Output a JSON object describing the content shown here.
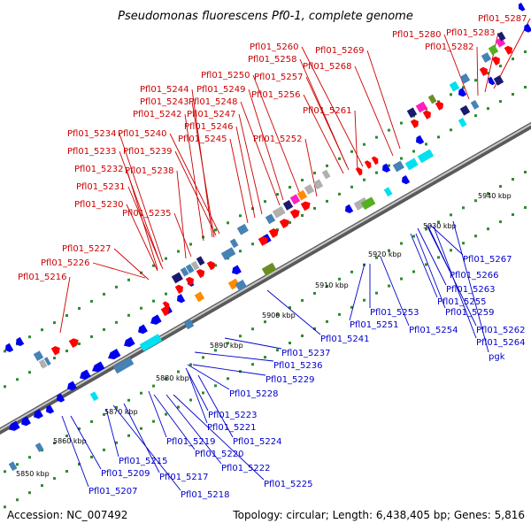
{
  "title": "Pseudomonas fluorescens Pf0-1, complete genome",
  "footer": {
    "accession": "Accession: NC_007492",
    "summary": "Topology: circular; Length: 6,438,405 bp; Genes: 5,816"
  },
  "colors": {
    "top_label": "#cc0000",
    "bottom_label": "#0000cc",
    "backbone": "#8a8a8a",
    "dots": "#2e8b2e",
    "forward_gene": "#ff0000",
    "reverse_gene": "#0000ee",
    "cyan_gene": "#00e0f0",
    "steelblue_gene": "#4682b4",
    "green_gene": "#55b020",
    "olive_gene": "#6b8e23",
    "orange_gene": "#ff8c00",
    "magenta_gene": "#ff20c0",
    "navy_gene": "#1a1a70",
    "gray_gene": "#b0b0b0"
  },
  "ticks": [
    {
      "label": "5850 kbp"
    },
    {
      "label": "5860 kbp"
    },
    {
      "label": "5870 kbp"
    },
    {
      "label": "5880 kbp"
    },
    {
      "label": "5890 kbp"
    },
    {
      "label": "5900 kbp"
    },
    {
      "label": "5910 kbp"
    },
    {
      "label": "5920 kbp"
    },
    {
      "label": "5930 kbp"
    },
    {
      "label": "5940 kbp"
    }
  ],
  "top_labels": [
    "Pfl01_5287",
    "Pfl01_5283",
    "Pfl01_5280",
    "Pfl01_5282",
    "Pfl01_5260",
    "Pfl01_5269",
    "Pfl01_5258",
    "Pfl01_5268",
    "Pfl01_5257",
    "Pfl01_5250",
    "Pfl01_5244",
    "Pfl01_5249",
    "Pfl01_5256",
    "Pfl01_5243",
    "Pfl01_5248",
    "Pfl01_5261",
    "Pfl01_5242",
    "Pfl01_5247",
    "Pfl01_5246",
    "Pfl01_5234",
    "Pfl01_5240",
    "Pfl01_5245",
    "Pfl01_5252",
    "Pfl01_5233",
    "Pfl01_5239",
    "Pfl01_5232",
    "Pfl01_5238",
    "Pfl01_5231",
    "Pfl01_5230",
    "Pfl01_5235",
    "Pfl01_5227",
    "Pfl01_5226",
    "Pfl01_5216"
  ],
  "bottom_labels": [
    "Pfl01_5267",
    "Pfl01_5266",
    "Pfl01_5263",
    "Pfl01_5255",
    "Pfl01_5259",
    "Pfl01_5253",
    "Pfl01_5262",
    "Pfl01_5251",
    "Pfl01_5254",
    "Pfl01_5264",
    "Pfl01_5241",
    "pgk",
    "Pfl01_5237",
    "Pfl01_5236",
    "Pfl01_5229",
    "Pfl01_5228",
    "Pfl01_5223",
    "Pfl01_5221",
    "Pfl01_5224",
    "Pfl01_5219",
    "Pfl01_5220",
    "Pfl01_5215",
    "Pfl01_5222",
    "Pfl01_5209",
    "Pfl01_5217",
    "Pfl01_5225",
    "Pfl01_5207",
    "Pfl01_5218"
  ]
}
